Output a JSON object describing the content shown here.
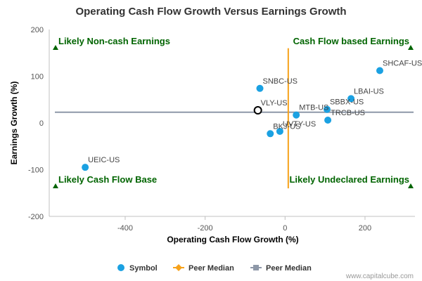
{
  "chart_data": {
    "type": "scatter",
    "title": "Operating Cash Flow Growth Versus Earnings Growth",
    "xlabel": "Operating Cash Flow Growth (%)",
    "ylabel": "Earnings Growth (%)",
    "xlim": [
      -590,
      325
    ],
    "ylim": [
      -200,
      200
    ],
    "x_ticks": [
      -400,
      -200,
      0,
      200
    ],
    "y_ticks": [
      200,
      100,
      0,
      -100,
      -200
    ],
    "grid": false,
    "points": [
      {
        "label": "SHCAF-US",
        "x": 237,
        "y": 112,
        "hollow": false
      },
      {
        "label": "SNBC-US",
        "x": -63,
        "y": 74,
        "hollow": false
      },
      {
        "label": "LBAI-US",
        "x": 165,
        "y": 52,
        "hollow": false
      },
      {
        "label": "SBBX-US",
        "x": 105,
        "y": 29,
        "hollow": false
      },
      {
        "label": "VLY-US",
        "x": -68,
        "y": 27,
        "hollow": true
      },
      {
        "label": "MTB-US",
        "x": 28,
        "y": 17,
        "hollow": false
      },
      {
        "label": "TRCB-US",
        "x": 107,
        "y": 6,
        "hollow": false
      },
      {
        "label": "UVTY-US",
        "x": -13,
        "y": -18,
        "hollow": false
      },
      {
        "label": "BKJ-US",
        "x": -37,
        "y": -23,
        "hollow": false
      },
      {
        "label": "UEIC-US",
        "x": -500,
        "y": -95,
        "hollow": false
      }
    ],
    "peer_median": {
      "x": 8,
      "y": 23,
      "x_line_range": [
        -140,
        160
      ]
    },
    "quadrant_labels": [
      {
        "text": "Likely Non-cash Earnings",
        "position": "top-left"
      },
      {
        "text": "Cash Flow based Earnings",
        "position": "top-right"
      },
      {
        "text": "Likely Cash Flow Base",
        "position": "bottom-left"
      },
      {
        "text": "Likely Undeclared Earnings",
        "position": "bottom-right"
      }
    ],
    "legend": {
      "position": "bottom",
      "items": [
        {
          "name": "Symbol",
          "marker": "circle",
          "color": "#1ba1e2"
        },
        {
          "name": "Peer Median",
          "marker": "diamond",
          "color": "#f7a21b"
        },
        {
          "name": "Peer Median",
          "marker": "square",
          "color": "#8e98a8"
        }
      ]
    },
    "colors": {
      "point": "#1ba1e2",
      "vertical_median": "#f7a21b",
      "horizontal_median": "#8e98a8",
      "quadrant_text": "#006400",
      "quadrant_marker": "#006400"
    }
  },
  "credit": "www.capitalcube.com"
}
